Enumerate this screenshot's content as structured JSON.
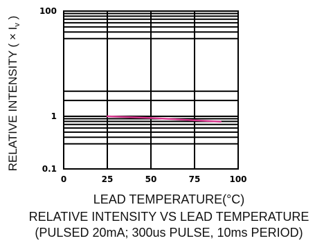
{
  "chart_data": {
    "type": "line",
    "title": "RELATIVE INTENSITY VS LEAD TEMPERATURE",
    "subtitle": "(PULSED 20mA; 300us PULSE, 10ms PERIOD)",
    "xlabel": "LEAD TEMPERATURE(°C)",
    "ylabel": "RELATIVE INTENSITY ( × I",
    "ylabel_sub": "v",
    "ylabel_end": " )",
    "xlim": [
      0,
      100
    ],
    "ylim": [
      0.1,
      100
    ],
    "yscale": "log",
    "grid": true,
    "x_ticks": [
      {
        "value": 0,
        "label": "0"
      },
      {
        "value": 25,
        "label": "25"
      },
      {
        "value": 50,
        "label": "50"
      },
      {
        "value": 75,
        "label": "75"
      },
      {
        "value": 100,
        "label": "100"
      }
    ],
    "y_tick_labels": [
      {
        "value": 100,
        "label": "100"
      },
      {
        "value": 1,
        "label": "1"
      },
      {
        "value": 0.1,
        "label": "0.1"
      }
    ],
    "y_gridlines": [
      0.3,
      0.4,
      0.5,
      0.6,
      0.7,
      0.8,
      0.9,
      1,
      2,
      3,
      30,
      40,
      50,
      60,
      70,
      80,
      90
    ],
    "series": [
      {
        "color": "#d6388e",
        "x": [
          25,
          50,
          75,
          90
        ],
        "y": [
          1.0,
          0.93,
          0.84,
          0.79
        ]
      }
    ]
  }
}
